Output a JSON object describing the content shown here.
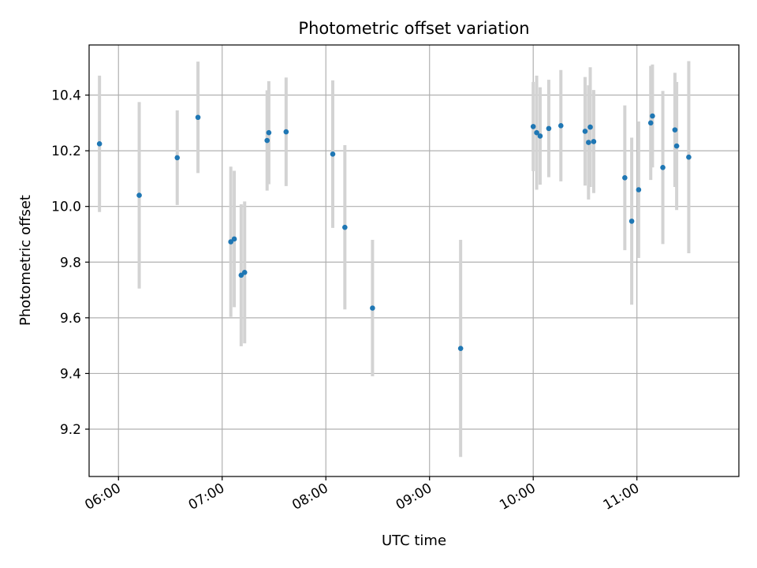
{
  "chart_data": {
    "type": "scatter",
    "title": "Photometric offset variation",
    "xlabel": "UTC time",
    "ylabel": "Photometric offset",
    "xlim": [
      "05:43",
      "11:59"
    ],
    "ylim": [
      9.03,
      10.58
    ],
    "x_ticks": [
      "06:00",
      "07:00",
      "08:00",
      "09:00",
      "10:00",
      "11:00"
    ],
    "y_ticks": [
      9.2,
      9.4,
      9.6,
      9.8,
      10.0,
      10.2,
      10.4
    ],
    "y_tick_labels": [
      "9.2",
      "9.4",
      "9.6",
      "9.8",
      "10.0",
      "10.2",
      "10.4"
    ],
    "grid": true,
    "x_tick_rotation_deg": 30,
    "colors": {
      "points": "#1f77b4",
      "error_bars": "#d3d3d3",
      "grid": "#b0b0b0"
    },
    "series": [
      {
        "points": [
          {
            "x": "05:49",
            "y": 10.225,
            "err": 0.245
          },
          {
            "x": "06:12",
            "y": 10.04,
            "err": 0.335
          },
          {
            "x": "06:34",
            "y": 10.175,
            "err": 0.17
          },
          {
            "x": "06:46",
            "y": 10.32,
            "err": 0.2
          },
          {
            "x": "07:05",
            "y": 9.873,
            "err": 0.27
          },
          {
            "x": "07:07",
            "y": 9.883,
            "err": 0.245
          },
          {
            "x": "07:11",
            "y": 9.753,
            "err": 0.255
          },
          {
            "x": "07:13",
            "y": 9.763,
            "err": 0.255
          },
          {
            "x": "07:26",
            "y": 10.237,
            "err": 0.18
          },
          {
            "x": "07:27",
            "y": 10.265,
            "err": 0.185
          },
          {
            "x": "07:37",
            "y": 10.268,
            "err": 0.195
          },
          {
            "x": "08:04",
            "y": 10.188,
            "err": 0.265
          },
          {
            "x": "08:11",
            "y": 9.925,
            "err": 0.295
          },
          {
            "x": "08:27",
            "y": 9.635,
            "err": 0.245
          },
          {
            "x": "09:18",
            "y": 9.49,
            "err": 0.39
          },
          {
            "x": "10:00",
            "y": 10.287,
            "err": 0.16
          },
          {
            "x": "10:02",
            "y": 10.265,
            "err": 0.205
          },
          {
            "x": "10:04",
            "y": 10.253,
            "err": 0.175
          },
          {
            "x": "10:09",
            "y": 10.28,
            "err": 0.175
          },
          {
            "x": "10:16",
            "y": 10.29,
            "err": 0.2
          },
          {
            "x": "10:30",
            "y": 10.27,
            "err": 0.195
          },
          {
            "x": "10:32",
            "y": 10.23,
            "err": 0.205
          },
          {
            "x": "10:33",
            "y": 10.285,
            "err": 0.215
          },
          {
            "x": "10:35",
            "y": 10.233,
            "err": 0.185
          },
          {
            "x": "10:53",
            "y": 10.103,
            "err": 0.26
          },
          {
            "x": "10:57",
            "y": 9.947,
            "err": 0.3
          },
          {
            "x": "11:01",
            "y": 10.06,
            "err": 0.245
          },
          {
            "x": "11:08",
            "y": 10.3,
            "err": 0.205
          },
          {
            "x": "11:09",
            "y": 10.325,
            "err": 0.185
          },
          {
            "x": "11:15",
            "y": 10.14,
            "err": 0.275
          },
          {
            "x": "11:22",
            "y": 10.275,
            "err": 0.205
          },
          {
            "x": "11:23",
            "y": 10.217,
            "err": 0.23
          },
          {
            "x": "11:30",
            "y": 10.177,
            "err": 0.345
          }
        ]
      }
    ]
  }
}
